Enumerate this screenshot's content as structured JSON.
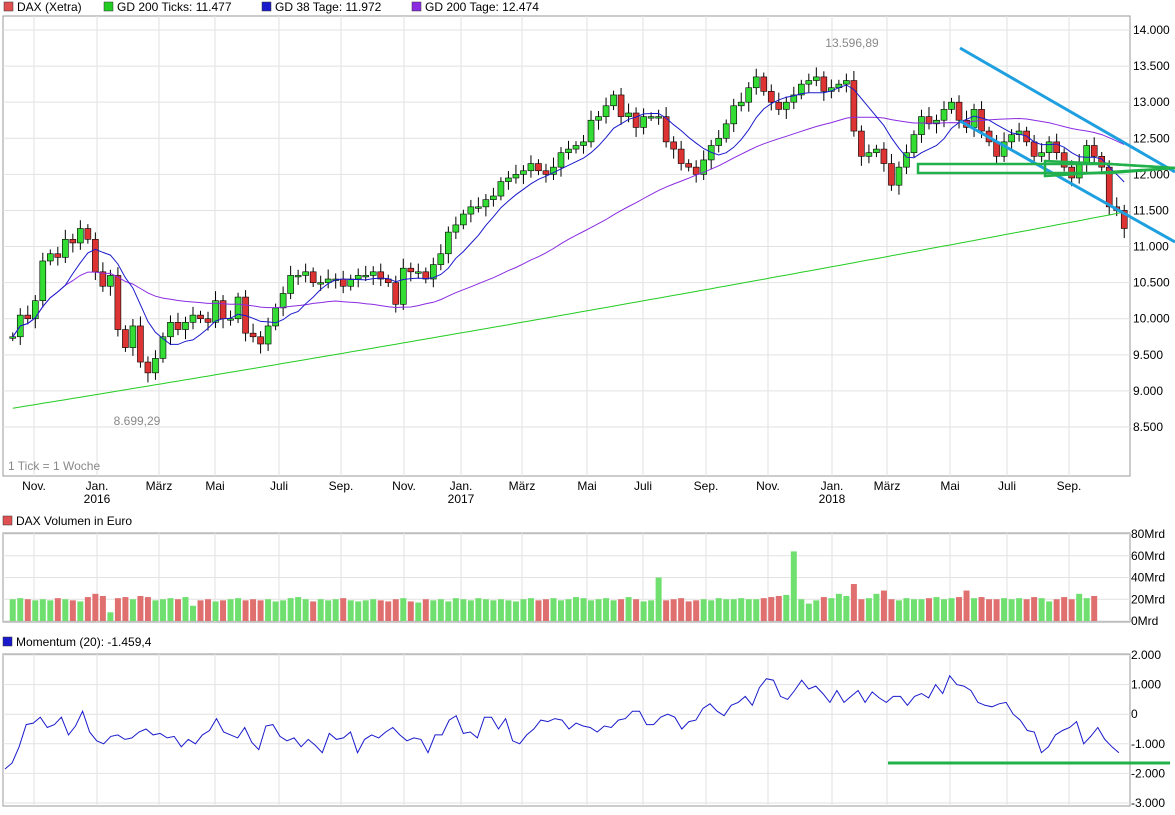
{
  "legend": [
    {
      "label": "DAX (Xetra)",
      "color": "#e05050"
    },
    {
      "label": "GD 200 Ticks: 11.477",
      "color": "#22cc22"
    },
    {
      "label": "GD 38 Tage: 11.972",
      "color": "#1a1acc"
    },
    {
      "label": "GD 200 Tage: 12.474",
      "color": "#8a2be2"
    }
  ],
  "annotations": {
    "high": "13.596,89",
    "low": "8.699,29",
    "tick_note": "1 Tick = 1 Woche"
  },
  "price_axis": [
    "14.000",
    "13.500",
    "13.000",
    "12.500",
    "12.000",
    "11.500",
    "11.000",
    "10.500",
    "10.000",
    "9.500",
    "9.000",
    "8.500"
  ],
  "time_axis": [
    {
      "label": "Nov."
    },
    {
      "label": "Jan.",
      "year": "2016"
    },
    {
      "label": "März"
    },
    {
      "label": "Mai"
    },
    {
      "label": "Juli"
    },
    {
      "label": "Sep."
    },
    {
      "label": "Nov."
    },
    {
      "label": "Jan.",
      "year": "2017"
    },
    {
      "label": "März"
    },
    {
      "label": "Mai"
    },
    {
      "label": "Juli"
    },
    {
      "label": "Sep."
    },
    {
      "label": "Nov."
    },
    {
      "label": "Jan.",
      "year": "2018"
    },
    {
      "label": "März"
    },
    {
      "label": "Mai"
    },
    {
      "label": "Juli"
    },
    {
      "label": "Sep."
    }
  ],
  "volume": {
    "title": "DAX Volumen in Euro",
    "color": "#e05050",
    "axis": [
      "80Mrd",
      "60Mrd",
      "40Mrd",
      "20Mrd",
      "0Mrd"
    ]
  },
  "momentum": {
    "title": "Momentum (20): -1.459,4",
    "color": "#1a1acc",
    "axis": [
      "2.000",
      "1.000",
      "0",
      "-1.000",
      "-2.000",
      "-3.000"
    ]
  },
  "chart_data": [
    {
      "type": "candlestick",
      "title": "DAX (Xetra)",
      "period": "weekly",
      "ylim": [
        8000,
        14200
      ],
      "start_close": 9750,
      "closes": [
        9750,
        10050,
        10000,
        10250,
        10800,
        10900,
        10850,
        11100,
        11050,
        11250,
        11100,
        10650,
        10450,
        10600,
        9850,
        9600,
        9900,
        9400,
        9250,
        9450,
        9750,
        9950,
        9850,
        9950,
        10050,
        10000,
        9950,
        10250,
        10000,
        10000,
        10300,
        9800,
        9750,
        9650,
        9900,
        10150,
        10350,
        10600,
        10600,
        10650,
        10500,
        10500,
        10550,
        10550,
        10450,
        10550,
        10600,
        10600,
        10650,
        10550,
        10500,
        10200,
        10700,
        10650,
        10650,
        10550,
        10750,
        10900,
        11200,
        11300,
        11450,
        11550,
        11550,
        11650,
        11700,
        11900,
        11950,
        12000,
        12050,
        12150,
        12050,
        12000,
        12100,
        12300,
        12350,
        12400,
        12450,
        12750,
        12800,
        12950,
        13100,
        12800,
        12850,
        12650,
        12800,
        12800,
        12800,
        12450,
        12350,
        12150,
        12100,
        12000,
        12200,
        12400,
        12500,
        12700,
        12950,
        13000,
        13200,
        13350,
        13150,
        13000,
        12900,
        13000,
        13100,
        13250,
        13300,
        13350,
        13150,
        13200,
        13250,
        13300,
        12600,
        12250,
        12300,
        12350,
        12150,
        11850,
        12100,
        12300,
        12550,
        12800,
        12700,
        12750,
        12900,
        13000,
        12750,
        12650,
        12900,
        12600,
        12450,
        12250,
        12450,
        12550,
        12600,
        12450,
        12250,
        12300,
        12450,
        12300,
        12100,
        11950,
        12150,
        12400,
        12250,
        12100,
        11550,
        11500,
        11250
      ],
      "high": "13.596,89",
      "low": "8.699,29"
    },
    {
      "type": "line",
      "name": "GD 200 Ticks",
      "last": "11.477",
      "start": 8760,
      "end": 11477
    },
    {
      "type": "line",
      "name": "GD 38 Tage",
      "last": "11.972"
    },
    {
      "type": "line",
      "name": "GD 200 Tage",
      "last": "12.474"
    },
    {
      "type": "bar",
      "title": "DAX Volumen in Euro",
      "ylim": [
        0,
        80
      ],
      "unit": "Mrd",
      "values": [
        20,
        21,
        20,
        19,
        20,
        19,
        21,
        20,
        19,
        18,
        22,
        25,
        23,
        8,
        21,
        22,
        20,
        23,
        22,
        19,
        20,
        21,
        20,
        22,
        14,
        19,
        20,
        18,
        19,
        20,
        21,
        19,
        20,
        19,
        20,
        18,
        19,
        21,
        22,
        20,
        18,
        20,
        19,
        20,
        21,
        19,
        18,
        19,
        20,
        19,
        18,
        20,
        21,
        18,
        17,
        20,
        19,
        20,
        18,
        21,
        20,
        19,
        21,
        20,
        19,
        20,
        19,
        18,
        20,
        21,
        19,
        20,
        21,
        19,
        20,
        22,
        21,
        19,
        20,
        21,
        19,
        20,
        22,
        20,
        18,
        19,
        40,
        19,
        20,
        21,
        18,
        19,
        20,
        19,
        21,
        20,
        20,
        21,
        20,
        20,
        21,
        22,
        23,
        24,
        64,
        20,
        16,
        19,
        22,
        21,
        25,
        23,
        34,
        20,
        21,
        25,
        28,
        20,
        19,
        21,
        20,
        20,
        21,
        22,
        20,
        21,
        22,
        28,
        21,
        22,
        20,
        20,
        21,
        20,
        21,
        20,
        22,
        21,
        18,
        20,
        22,
        20,
        25,
        21,
        23
      ],
      "vol_colors": "alternating red/green by candle direction"
    },
    {
      "type": "line",
      "name": "Momentum (20)",
      "last": "-1.459,4",
      "ylim": [
        -3000,
        2000
      ],
      "values": [
        -1850,
        -1650,
        -1100,
        -350,
        -300,
        -100,
        -450,
        -350,
        -100,
        -700,
        -400,
        100,
        -600,
        -900,
        -1000,
        -750,
        -700,
        -850,
        -800,
        -600,
        -500,
        -700,
        -650,
        -800,
        -750,
        -1100,
        -850,
        -1000,
        -700,
        -550,
        -150,
        -600,
        -700,
        -800,
        -450,
        -950,
        -1200,
        -400,
        -350,
        -750,
        -900,
        -800,
        -1100,
        -850,
        -1050,
        -1300,
        -650,
        -850,
        -800,
        -600,
        -1300,
        -850,
        -700,
        -800,
        -600,
        -450,
        -700,
        -900,
        -800,
        -850,
        -1300,
        -700,
        -700,
        -200,
        -50,
        -650,
        -600,
        -800,
        -100,
        -100,
        -500,
        -150,
        -900,
        -1000,
        -700,
        -500,
        -200,
        -250,
        -150,
        -200,
        -500,
        -300,
        -400,
        -450,
        -600,
        -400,
        -450,
        -200,
        -150,
        100,
        100,
        -350,
        -350,
        -100,
        0,
        -100,
        -500,
        -250,
        -200,
        200,
        350,
        100,
        -50,
        300,
        400,
        600,
        300,
        900,
        1200,
        1150,
        600,
        500,
        800,
        1150,
        850,
        950,
        700,
        400,
        800,
        400,
        600,
        800,
        400,
        750,
        550,
        400,
        600,
        600,
        300,
        600,
        700,
        550,
        1000,
        700,
        1300,
        1000,
        950,
        800,
        400,
        300,
        250,
        350,
        400,
        0,
        -200,
        -550,
        -600,
        -1300,
        -1100,
        -700,
        -550,
        -450,
        -250,
        -1000,
        -750,
        -450,
        -850,
        -1100,
        -1300
      ],
      "support": "-1.650"
    }
  ]
}
